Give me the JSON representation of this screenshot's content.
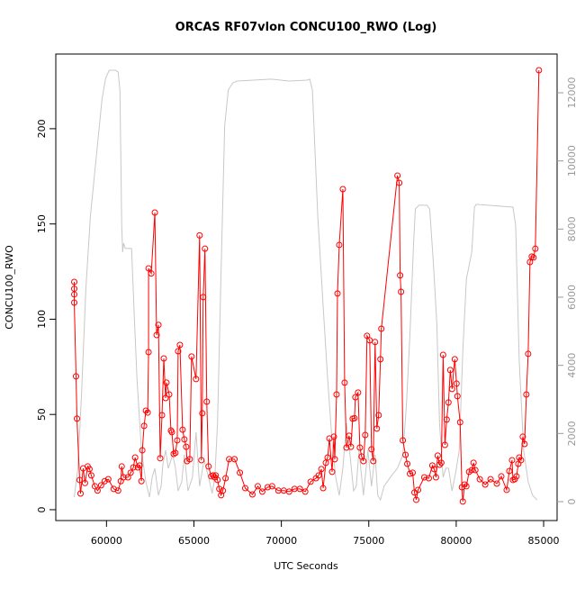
{
  "chart_data": {
    "type": "line",
    "title": "ORCAS RF07vlon CONCU100_RWO (Log)",
    "xlabel": "UTC Seconds",
    "ylabel": "CONCU100_RWO",
    "xlim": [
      57100,
      85770
    ],
    "ylim": [
      -5.7,
      239.2
    ],
    "y2lim": [
      -555,
      13137
    ],
    "xticks": [
      60000,
      65000,
      70000,
      75000,
      80000,
      85000
    ],
    "yticks": [
      0,
      50,
      100,
      150,
      200
    ],
    "y2ticks": [
      0,
      2000,
      4000,
      6000,
      8000,
      10000,
      12000
    ],
    "series": [
      {
        "color": "#ff0000",
        "markers": true,
        "x": [
          58156,
          58156,
          58156,
          58156,
          58258,
          58310,
          58464,
          58515,
          58668,
          58770,
          58925,
          59027,
          59130,
          59334,
          59488,
          59693,
          59898,
          60102,
          60410,
          60666,
          60819,
          60870,
          60973,
          61229,
          61382,
          61536,
          61638,
          61792,
          61894,
          61997,
          62048,
          62150,
          62253,
          62355,
          62406,
          62406,
          62560,
          62765,
          62867,
          62970,
          63072,
          63174,
          63277,
          63379,
          63430,
          63584,
          63686,
          63738,
          63840,
          63942,
          64045,
          64096,
          64198,
          64352,
          64454,
          64557,
          64608,
          64762,
          64864,
          65120,
          65325,
          65427,
          65478,
          65530,
          65632,
          65734,
          65837,
          65990,
          66093,
          66195,
          66246,
          66349,
          66451,
          66554,
          66656,
          66810,
          67014,
          67322,
          67629,
          67936,
          68346,
          68653,
          68909,
          69216,
          69472,
          69830,
          70138,
          70445,
          70752,
          71059,
          71366,
          71674,
          71981,
          72134,
          72288,
          72390,
          72544,
          72646,
          72749,
          72902,
          73005,
          73056,
          73158,
          73210,
          73312,
          73517,
          73619,
          73722,
          73875,
          73978,
          74080,
          74182,
          74234,
          74387,
          74490,
          74592,
          74694,
          74797,
          74899,
          75053,
          75155,
          75258,
          75360,
          75462,
          75565,
          75667,
          75718,
          76640,
          76742,
          76794,
          76845,
          76947,
          77101,
          77203,
          77357,
          77510,
          77613,
          77715,
          77818,
          78176,
          78432,
          78637,
          78739,
          78842,
          78944,
          79046,
          79149,
          79251,
          79354,
          79456,
          79558,
          79661,
          79763,
          79917,
          80019,
          80070,
          80224,
          80326,
          80378,
          80480,
          80582,
          80736,
          80890,
          80992,
          81094,
          81350,
          81658,
          81965,
          82323,
          82579,
          82886,
          83040,
          83194,
          83245,
          83347,
          83450,
          83552,
          83603,
          83706,
          83808,
          83910,
          84013,
          84115,
          84218,
          84320,
          84422,
          84525,
          84730
        ],
        "values": [
          119.6,
          116,
          113,
          108.7,
          70,
          47.8,
          15.6,
          8.5,
          21.7,
          14,
          22.7,
          21.3,
          18,
          12.3,
          10,
          12.8,
          15,
          16,
          10.9,
          10,
          15,
          22.7,
          17,
          17,
          19.4,
          22.2,
          27.4,
          22.2,
          23.2,
          15,
          31.2,
          44,
          52,
          51,
          82.7,
          126.7,
          124,
          156,
          91.7,
          97,
          27,
          49.6,
          79.4,
          58.6,
          66.7,
          60.5,
          41.6,
          40.7,
          29.3,
          29.8,
          36.4,
          83.2,
          86.5,
          42,
          36.9,
          33,
          25.5,
          26.5,
          80.4,
          68.6,
          144,
          26,
          50.6,
          111.6,
          137,
          56.7,
          22.7,
          17.5,
          18,
          17,
          18,
          15.6,
          10.9,
          7.6,
          10,
          16.5,
          26.5,
          26.5,
          19.4,
          11.3,
          8,
          12.3,
          9.5,
          11.8,
          12.3,
          10,
          10,
          9.5,
          10.9,
          10.9,
          9.5,
          14.7,
          16.5,
          18,
          21.3,
          11.3,
          24.6,
          27.4,
          37.4,
          19.9,
          38.3,
          26.5,
          60.5,
          113.5,
          139,
          168.3,
          66.7,
          32.6,
          38.8,
          33,
          47.8,
          48,
          59,
          61.5,
          32.6,
          27.9,
          25.5,
          39.2,
          91.3,
          88.9,
          31.7,
          25.5,
          88,
          42.6,
          49.6,
          79,
          95,
          175.4,
          171.6,
          123,
          114.4,
          36.4,
          28.8,
          24.1,
          18.9,
          19.4,
          9,
          5.2,
          10.4,
          17,
          16.5,
          23.2,
          21.3,
          17,
          28.4,
          23.6,
          24.6,
          81.3,
          34,
          47.3,
          56.3,
          73.3,
          63.4,
          79,
          66.2,
          59.6,
          45.9,
          11.8,
          4.3,
          13.2,
          12.3,
          19.9,
          20.8,
          24.6,
          20.8,
          16,
          13.2,
          16,
          13.7,
          17.5,
          10.4,
          20.3,
          26,
          15.6,
          16,
          17.5,
          24.1,
          27.4,
          26,
          38.3,
          34.5,
          60.5,
          81.8,
          130,
          132.9,
          132.4,
          137,
          230.7
        ]
      },
      {
        "color": "#c8c8c8",
        "axis": "y2",
        "x": [
          58156,
          58362,
          58566,
          58822,
          59078,
          59386,
          59744,
          59949,
          60154,
          60512,
          60666,
          60768,
          60870,
          60922,
          60973,
          61075,
          61434,
          61587,
          61741,
          61997,
          62253,
          62457,
          62611,
          62765,
          62970,
          63123,
          63226,
          63379,
          63533,
          63789,
          63942,
          64096,
          64301,
          64454,
          64659,
          64915,
          65120,
          65325,
          65581,
          65837,
          66042,
          66195,
          66349,
          66554,
          66758,
          66963,
          67219,
          67475,
          69421,
          70445,
          71469,
          71622,
          71776,
          72083,
          72390,
          72646,
          72902,
          73107,
          73312,
          73517,
          73722,
          73926,
          74131,
          74285,
          74438,
          74694,
          74950,
          75155,
          75360,
          75514,
          75667,
          75872,
          76230,
          76640,
          76947,
          77152,
          77357,
          77562,
          77664,
          77869,
          78330,
          78483,
          78688,
          78893,
          79046,
          79251,
          79405,
          79558,
          79763,
          79968,
          80173,
          80378,
          80582,
          80890,
          81043,
          81146,
          83245,
          83399,
          83603,
          83859,
          84115,
          84371,
          84627
        ],
        "values": [
          130,
          980,
          3090,
          6265,
          8380,
          9965,
          11815,
          12425,
          12660,
          12660,
          12610,
          12080,
          8115,
          7322,
          7585,
          7430,
          7430,
          5470,
          3620,
          1505,
          580,
          130,
          715,
          980,
          185,
          450,
          1110,
          1505,
          980,
          1375,
          980,
          315,
          580,
          1375,
          315,
          715,
          2035,
          450,
          1240,
          715,
          240,
          715,
          2300,
          6795,
          11025,
          12080,
          12290,
          12345,
          12400,
          12345,
          12370,
          12400,
          12080,
          8380,
          5735,
          3620,
          1770,
          715,
          185,
          980,
          2300,
          1375,
          315,
          450,
          1505,
          185,
          1505,
          450,
          1375,
          185,
          50,
          450,
          715,
          980,
          1375,
          2830,
          4945,
          7585,
          8590,
          8700,
          8700,
          8590,
          7060,
          5210,
          2300,
          715,
          980,
          980,
          315,
          850,
          1505,
          4415,
          6530,
          7322,
          8645,
          8725,
          8645,
          8115,
          4150,
          1505,
          580,
          185,
          50
        ]
      }
    ]
  }
}
